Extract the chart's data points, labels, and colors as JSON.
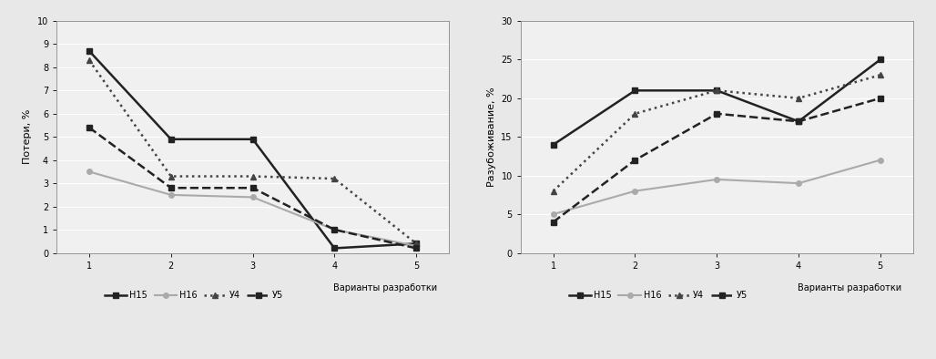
{
  "x": [
    1,
    2,
    3,
    4,
    5
  ],
  "left": {
    "ylabel": "Потери, %",
    "ylim": [
      0,
      10
    ],
    "yticks": [
      0,
      1,
      2,
      3,
      4,
      5,
      6,
      7,
      8,
      9,
      10
    ],
    "series": {
      "H15": [
        8.7,
        4.9,
        4.9,
        0.2,
        0.4
      ],
      "H16": [
        3.5,
        2.5,
        2.4,
        1.0,
        0.3
      ],
      "Y4": [
        8.3,
        3.3,
        3.3,
        3.2,
        0.4
      ],
      "Y5": [
        5.4,
        2.8,
        2.8,
        1.0,
        0.2
      ]
    }
  },
  "right": {
    "ylabel": "Разубоживание, %",
    "ylim": [
      0,
      30
    ],
    "yticks": [
      0,
      5,
      10,
      15,
      20,
      25,
      30
    ],
    "series": {
      "H15": [
        14.0,
        21.0,
        21.0,
        17.0,
        25.0
      ],
      "H16": [
        5.0,
        8.0,
        9.5,
        9.0,
        12.0
      ],
      "Y4": [
        8.0,
        18.0,
        21.0,
        20.0,
        23.0
      ],
      "Y5": [
        4.0,
        12.0,
        18.0,
        17.0,
        20.0
      ]
    }
  },
  "xlabel": "Варианты разработки",
  "series_styles": {
    "H15": {
      "color": "#222222",
      "linestyle": "-",
      "marker": "s",
      "markersize": 4,
      "linewidth": 1.8
    },
    "H16": {
      "color": "#aaaaaa",
      "linestyle": "-",
      "marker": "o",
      "markersize": 4,
      "linewidth": 1.5
    },
    "Y4": {
      "color": "#444444",
      "linestyle": ":",
      "marker": "^",
      "markersize": 4,
      "linewidth": 1.8
    },
    "Y5": {
      "color": "#222222",
      "linestyle": "--",
      "marker": "s",
      "markersize": 4,
      "linewidth": 1.8
    }
  },
  "legend_names": {
    "H15": "Н15",
    "H16": "Н16",
    "Y4": "У4",
    "Y5": "У5"
  },
  "bg_color": "#e8e8e8",
  "plot_bg": "#f0f0f0",
  "fontsize": 8,
  "tick_fontsize": 7
}
